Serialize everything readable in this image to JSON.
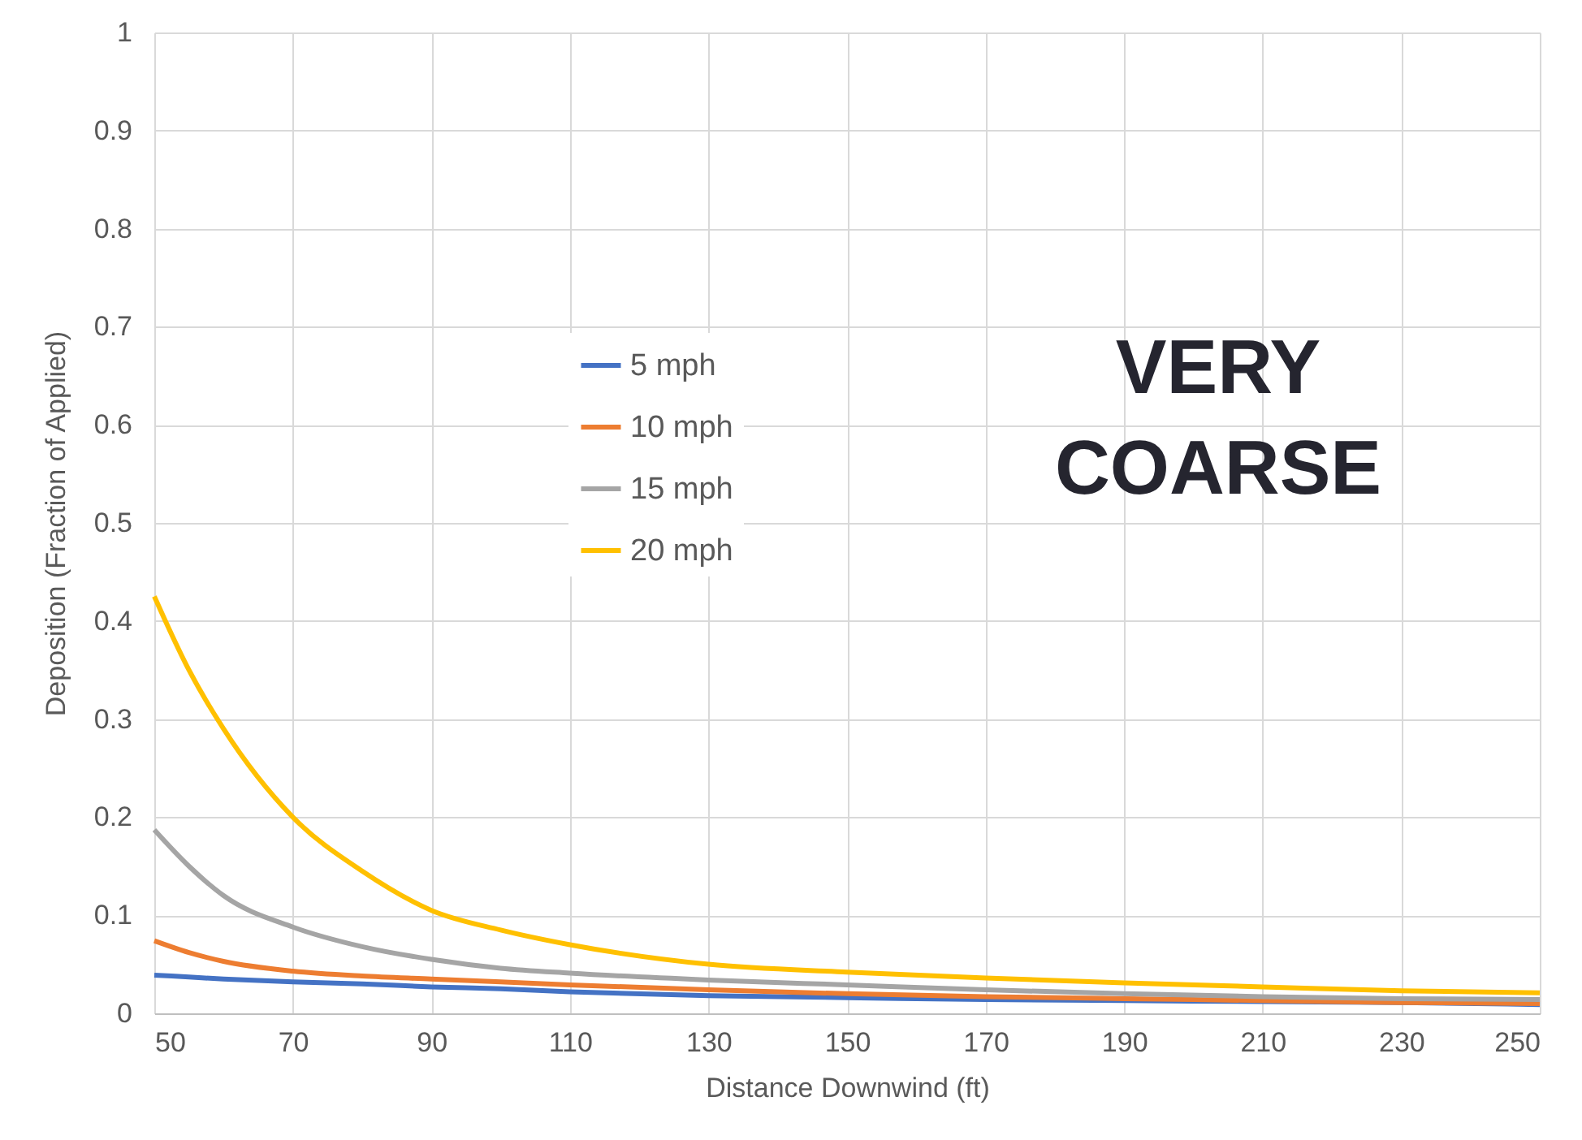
{
  "chart_data": {
    "type": "line",
    "xlabel": "Distance Downwind (ft)",
    "ylabel": "Deposition (Fraction of Applied)",
    "x": [
      50,
      55,
      60,
      70,
      80,
      90,
      100,
      110,
      130,
      150,
      170,
      190,
      210,
      230,
      250
    ],
    "series": [
      {
        "name": "5 mph",
        "color": "#4472c4",
        "values": [
          0.039,
          0.037,
          0.035,
          0.032,
          0.03,
          0.027,
          0.025,
          0.022,
          0.018,
          0.016,
          0.014,
          0.013,
          0.012,
          0.011,
          0.009
        ]
      },
      {
        "name": "10 mph",
        "color": "#ed7d31",
        "values": [
          0.074,
          0.062,
          0.053,
          0.043,
          0.038,
          0.035,
          0.032,
          0.029,
          0.024,
          0.02,
          0.017,
          0.015,
          0.013,
          0.011,
          0.01
        ]
      },
      {
        "name": "15 mph",
        "color": "#a5a5a5",
        "values": [
          0.187,
          0.15,
          0.12,
          0.088,
          0.068,
          0.055,
          0.046,
          0.041,
          0.034,
          0.029,
          0.024,
          0.02,
          0.017,
          0.015,
          0.014
        ]
      },
      {
        "name": "20 mph",
        "color": "#ffc000",
        "values": [
          0.425,
          0.35,
          0.29,
          0.2,
          0.145,
          0.105,
          0.085,
          0.07,
          0.05,
          0.042,
          0.036,
          0.031,
          0.027,
          0.023,
          0.021
        ]
      }
    ],
    "xlim": [
      50,
      250
    ],
    "xticks": [
      50,
      70,
      90,
      110,
      130,
      150,
      170,
      190,
      210,
      230,
      250
    ],
    "ylim": [
      0,
      1
    ],
    "yticks": [
      0,
      0.1,
      0.2,
      0.3,
      0.4,
      0.5,
      0.6,
      0.7,
      0.8,
      0.9,
      1
    ],
    "grid": true,
    "legend": "top left",
    "annotations": [
      "VERY COARSE"
    ]
  }
}
